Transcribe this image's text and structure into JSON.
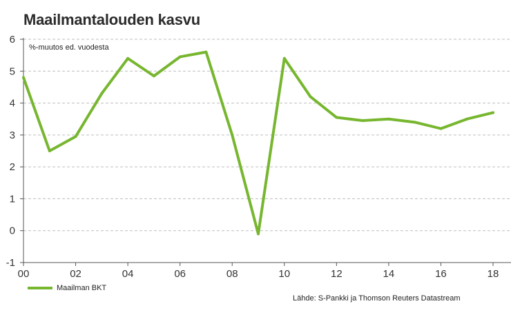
{
  "title": "Maailmantalouden kasvu",
  "colors": {
    "series": "#77b62f",
    "grid": "#bdbdbd",
    "axis": "#555555"
  },
  "chart_data": {
    "type": "line",
    "title": "Maailmantalouden kasvu",
    "ylabel": "%-muutos ed. vuodesta",
    "xlabel": "",
    "ylim": [
      -1,
      6
    ],
    "xlim": [
      2000,
      2019
    ],
    "yticks": [
      -1,
      0,
      1,
      2,
      3,
      4,
      5,
      6
    ],
    "xticks": [
      {
        "x": 2000,
        "label": "00"
      },
      {
        "x": 2002,
        "label": "02"
      },
      {
        "x": 2004,
        "label": "04"
      },
      {
        "x": 2006,
        "label": "06"
      },
      {
        "x": 2008,
        "label": "08"
      },
      {
        "x": 2010,
        "label": "10"
      },
      {
        "x": 2012,
        "label": "12"
      },
      {
        "x": 2014,
        "label": "14"
      },
      {
        "x": 2016,
        "label": "16"
      },
      {
        "x": 2018,
        "label": "18"
      }
    ],
    "grid": "horizontal dashed",
    "legend": "bottom-left",
    "source": "Lähde: S-Pankki ja Thomson Reuters Datastream",
    "series": [
      {
        "name": "Maailman BKT",
        "color": "#77b62f",
        "x": [
          2000,
          2001,
          2002,
          2003,
          2004,
          2005,
          2006,
          2007,
          2008,
          2009,
          2010,
          2011,
          2012,
          2013,
          2014,
          2015,
          2016,
          2017,
          2018
        ],
        "y": [
          4.8,
          2.5,
          2.95,
          4.3,
          5.4,
          4.85,
          5.45,
          5.6,
          3.0,
          -0.1,
          5.4,
          4.2,
          3.55,
          3.45,
          3.5,
          3.4,
          3.2,
          3.5,
          3.7
        ]
      }
    ]
  }
}
